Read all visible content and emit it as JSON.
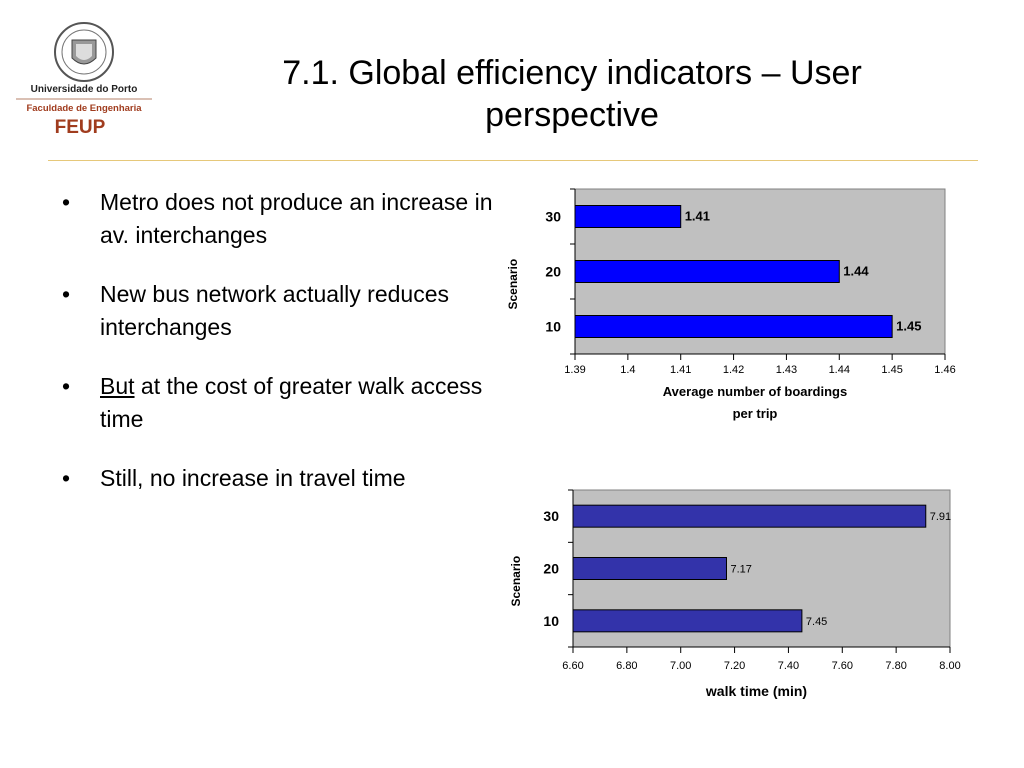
{
  "header": {
    "title": "7.1. Global efficiency indicators – User perspective",
    "logo": {
      "university": "Universidade do Porto",
      "faculty": "Faculdade de Engenharia",
      "acronym": "FEUP"
    }
  },
  "bullets": [
    {
      "text": "Metro does not produce an increase in av. interchanges"
    },
    {
      "text": "New bus network actually reduces interchanges"
    },
    {
      "underlined": "But",
      "text": " at the cost of greater walk access time"
    },
    {
      "text": "Still, no increase in travel time"
    }
  ],
  "colors": {
    "accent_line": "#e6c87a",
    "logo_red": "#a03c1e",
    "plot_bg": "#c0c0c0",
    "bar1": "#0000ff",
    "bar2": "#3333aa"
  },
  "chart_data": [
    {
      "type": "bar",
      "orientation": "horizontal",
      "categories": [
        "30",
        "20",
        "10"
      ],
      "values": [
        1.41,
        1.44,
        1.45
      ],
      "data_labels": [
        "1.41",
        "1.44",
        "1.45"
      ],
      "ticks": [
        "1.39",
        "1.4",
        "1.41",
        "1.42",
        "1.43",
        "1.44",
        "1.45",
        "1.46"
      ],
      "xlim": [
        1.39,
        1.46
      ],
      "xlabel_lines": [
        "Average number of boardings",
        "per trip"
      ],
      "ylabel": "Scenario",
      "grid": false,
      "bar_color": "#0000ff"
    },
    {
      "type": "bar",
      "orientation": "horizontal",
      "categories": [
        "30",
        "20",
        "10"
      ],
      "values": [
        7.91,
        7.17,
        7.45
      ],
      "data_labels": [
        "7.91",
        "7.17",
        "7.45"
      ],
      "ticks": [
        "6.60",
        "6.80",
        "7.00",
        "7.20",
        "7.40",
        "7.60",
        "7.80",
        "8.00"
      ],
      "xlim": [
        6.6,
        8.0
      ],
      "xlabel_lines": [
        "walk time (min)"
      ],
      "ylabel": "Scenario",
      "grid": false,
      "bar_color": "#3333aa"
    }
  ]
}
